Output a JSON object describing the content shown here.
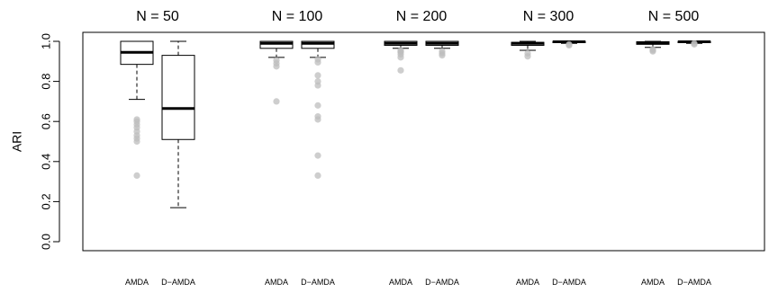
{
  "chart_data": {
    "type": "boxplot",
    "ylabel": "ARI",
    "ylim": [
      0.0,
      1.0
    ],
    "yticks": [
      0.0,
      0.2,
      0.4,
      0.6,
      0.8,
      1.0
    ],
    "ytick_labels": [
      "0.0",
      "0.2",
      "0.4",
      "0.6",
      "0.8",
      "1.0"
    ],
    "outlier_color": "#bdbdbd",
    "panels": [
      {
        "title": "N = 50",
        "groups": [
          {
            "label": "AMDA",
            "whisker_low": 0.71,
            "q1": 0.885,
            "median": 0.945,
            "q3": 1.0,
            "whisker_high": 1.0,
            "outliers": [
              0.61,
              0.6,
              0.585,
              0.57,
              0.55,
              0.53,
              0.515,
              0.5,
              0.33
            ]
          },
          {
            "label": "D−AMDA",
            "whisker_low": 0.17,
            "q1": 0.51,
            "median": 0.665,
            "q3": 0.93,
            "whisker_high": 1.0,
            "outliers": []
          }
        ]
      },
      {
        "title": "N = 100",
        "groups": [
          {
            "label": "AMDA",
            "whisker_low": 0.92,
            "q1": 0.965,
            "median": 0.99,
            "q3": 1.0,
            "whisker_high": 1.0,
            "outliers": [
              0.905,
              0.89,
              0.875,
              0.7
            ]
          },
          {
            "label": "D−AMDA",
            "whisker_low": 0.92,
            "q1": 0.965,
            "median": 0.99,
            "q3": 1.0,
            "whisker_high": 1.0,
            "outliers": [
              0.91,
              0.895,
              0.83,
              0.8,
              0.78,
              0.68,
              0.625,
              0.61,
              0.43,
              0.33
            ]
          }
        ]
      },
      {
        "title": "N = 200",
        "groups": [
          {
            "label": "AMDA",
            "whisker_low": 0.965,
            "q1": 0.98,
            "median": 0.99,
            "q3": 1.0,
            "whisker_high": 1.0,
            "outliers": [
              0.955,
              0.95,
              0.945,
              0.935,
              0.92,
              0.855
            ]
          },
          {
            "label": "D−AMDA",
            "whisker_low": 0.965,
            "q1": 0.98,
            "median": 0.99,
            "q3": 1.0,
            "whisker_high": 1.0,
            "outliers": [
              0.95,
              0.94,
              0.93
            ]
          }
        ]
      },
      {
        "title": "N = 300",
        "groups": [
          {
            "label": "AMDA",
            "whisker_low": 0.955,
            "q1": 0.98,
            "median": 0.99,
            "q3": 0.995,
            "whisker_high": 1.0,
            "outliers": [
              0.94,
              0.925
            ]
          },
          {
            "label": "D−AMDA",
            "whisker_low": 0.99,
            "q1": 0.995,
            "median": 0.998,
            "q3": 1.0,
            "whisker_high": 1.0,
            "outliers": [
              0.985,
              0.98
            ]
          }
        ]
      },
      {
        "title": "N = 500",
        "groups": [
          {
            "label": "AMDA",
            "whisker_low": 0.97,
            "q1": 0.985,
            "median": 0.993,
            "q3": 0.998,
            "whisker_high": 1.0,
            "outliers": [
              0.96,
              0.955,
              0.95
            ]
          },
          {
            "label": "D−AMDA",
            "whisker_low": 0.99,
            "q1": 0.995,
            "median": 0.998,
            "q3": 1.0,
            "whisker_high": 1.0,
            "outliers": [
              0.99,
              0.985
            ]
          }
        ]
      }
    ]
  }
}
